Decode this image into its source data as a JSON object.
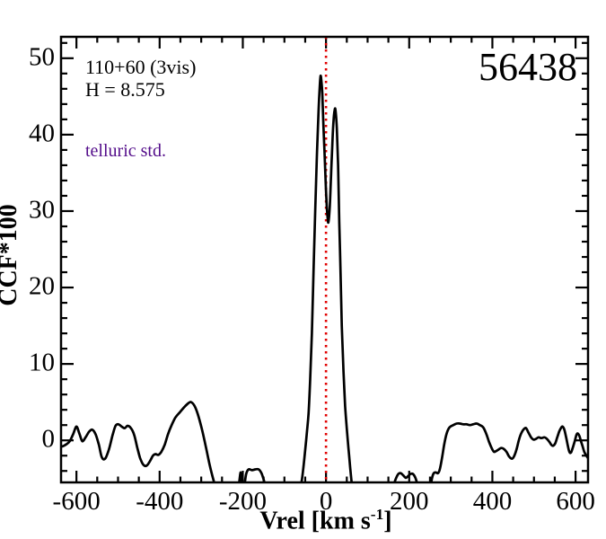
{
  "annotations": {
    "target_name": "110+60 (3vis)",
    "h_magnitude": "H = 8.575",
    "classification": "telluric std.",
    "classification_color": "#530d8a",
    "mjd": "56438"
  },
  "axes": {
    "xlabel_prefix": "Vrel [km s",
    "xlabel_sup": "-1",
    "xlabel_suffix": "]",
    "ylabel": "CCF*100",
    "x_tick_labels": [
      "-600",
      "-400",
      "-200",
      "0",
      "200",
      "400",
      "600"
    ],
    "x_tick_values": [
      -600,
      -400,
      -200,
      0,
      200,
      400,
      600
    ],
    "x_minor_step": 50,
    "y_tick_labels": [
      "0",
      "10",
      "20",
      "30",
      "40",
      "50"
    ],
    "y_tick_values": [
      0,
      10,
      20,
      30,
      40,
      50
    ],
    "y_minor_step": 2,
    "xlim": [
      -637,
      630
    ],
    "ylim": [
      -5.5,
      52.8
    ]
  },
  "chart_data": {
    "type": "line",
    "title": "",
    "xlabel": "Vrel [km s-1]",
    "ylabel": "CCF*100",
    "xlim": [
      -637,
      630
    ],
    "ylim": [
      -5.5,
      52.8
    ],
    "grid": false,
    "legend": "none",
    "reference_line": {
      "x": 0,
      "color": "#e00000",
      "style": "dotted",
      "orientation": "vertical"
    },
    "series": [
      {
        "name": "CCF",
        "color": "#000000",
        "points": [
          [
            -643,
            -0.7
          ],
          [
            -635,
            -0.8
          ],
          [
            -624,
            -0.5
          ],
          [
            -616,
            -0.1
          ],
          [
            -608,
            0.8
          ],
          [
            -600,
            1.8
          ],
          [
            -593,
            0.9
          ],
          [
            -586,
            -0.1
          ],
          [
            -578,
            0.4
          ],
          [
            -570,
            1.1
          ],
          [
            -562,
            1.4
          ],
          [
            -554,
            0.8
          ],
          [
            -546,
            -0.6
          ],
          [
            -539,
            -2.2
          ],
          [
            -531,
            -2.4
          ],
          [
            -522,
            -1.2
          ],
          [
            -513,
            0.7
          ],
          [
            -506,
            1.9
          ],
          [
            -499,
            2.1
          ],
          [
            -491,
            1.8
          ],
          [
            -484,
            1.6
          ],
          [
            -477,
            1.9
          ],
          [
            -469,
            1.6
          ],
          [
            -461,
            0.7
          ],
          [
            -454,
            -0.9
          ],
          [
            -447,
            -2.3
          ],
          [
            -439,
            -3.2
          ],
          [
            -431,
            -3.3
          ],
          [
            -423,
            -2.7
          ],
          [
            -416,
            -2.0
          ],
          [
            -410,
            -1.8
          ],
          [
            -403,
            -1.9
          ],
          [
            -396,
            -1.5
          ],
          [
            -388,
            -0.6
          ],
          [
            -380,
            0.8
          ],
          [
            -371,
            2.0
          ],
          [
            -362,
            3.0
          ],
          [
            -351,
            3.7
          ],
          [
            -340,
            4.4
          ],
          [
            -330,
            4.9
          ],
          [
            -324,
            5.0
          ],
          [
            -316,
            4.5
          ],
          [
            -308,
            3.4
          ],
          [
            -299,
            1.6
          ],
          [
            -289,
            -0.8
          ],
          [
            -279,
            -3.4
          ],
          [
            -269,
            -5.5
          ],
          [
            -261,
            -7.0
          ],
          [
            -248,
            -8.0
          ],
          [
            -232,
            -8.0
          ],
          [
            -213,
            -6.8
          ],
          [
            -209,
            -5.6
          ],
          [
            -205,
            -4.2
          ],
          [
            -202,
            -5.8
          ],
          [
            -197,
            -6.1
          ],
          [
            -192,
            -4.4
          ],
          [
            -186,
            -3.8
          ],
          [
            -178,
            -3.9
          ],
          [
            -170,
            -3.8
          ],
          [
            -162,
            -3.8
          ],
          [
            -155,
            -4.3
          ],
          [
            -149,
            -5.3
          ],
          [
            -144,
            -6.4
          ],
          [
            -136,
            -7.6
          ],
          [
            -115,
            -8.0
          ],
          [
            -85,
            -8.0
          ],
          [
            -68,
            -7.2
          ],
          [
            -60,
            -5.8
          ],
          [
            -55,
            -3.9
          ],
          [
            -50,
            -1.2
          ],
          [
            -46,
            1.0
          ],
          [
            -42,
            3.5
          ],
          [
            -38,
            8.0
          ],
          [
            -34,
            14.0
          ],
          [
            -30,
            22.0
          ],
          [
            -26,
            30.0
          ],
          [
            -22,
            37.0
          ],
          [
            -18,
            43.0
          ],
          [
            -15,
            46.4
          ],
          [
            -13,
            47.7
          ],
          [
            -11,
            47.0
          ],
          [
            -9,
            45.4
          ],
          [
            -6,
            41.0
          ],
          [
            -2,
            35.5
          ],
          [
            1,
            31.5
          ],
          [
            4,
            29.0
          ],
          [
            6,
            28.6
          ],
          [
            9,
            30.5
          ],
          [
            12,
            34.5
          ],
          [
            15,
            38.5
          ],
          [
            18,
            41.8
          ],
          [
            21,
            43.3
          ],
          [
            23,
            43.1
          ],
          [
            26,
            40.8
          ],
          [
            29,
            36.0
          ],
          [
            32,
            28.5
          ],
          [
            35,
            22.0
          ],
          [
            38,
            15.0
          ],
          [
            42,
            9.0
          ],
          [
            46,
            4.5
          ],
          [
            50,
            1.5
          ],
          [
            54,
            -1.0
          ],
          [
            58,
            -3.5
          ],
          [
            62,
            -5.6
          ],
          [
            66,
            -7.2
          ],
          [
            80,
            -8.2
          ],
          [
            120,
            -8.2
          ],
          [
            155,
            -7.5
          ],
          [
            162,
            -6.0
          ],
          [
            168,
            -5.0
          ],
          [
            174,
            -4.4
          ],
          [
            180,
            -4.3
          ],
          [
            186,
            -4.6
          ],
          [
            192,
            -4.9
          ],
          [
            197,
            -4.7
          ],
          [
            203,
            -4.4
          ],
          [
            209,
            -4.4
          ],
          [
            215,
            -4.9
          ],
          [
            220,
            -5.8
          ],
          [
            227,
            -7.2
          ],
          [
            236,
            -7.8
          ],
          [
            246,
            -7.2
          ],
          [
            251,
            -6.2
          ],
          [
            255,
            -4.9
          ],
          [
            259,
            -4.3
          ],
          [
            264,
            -4.2
          ],
          [
            269,
            -4.3
          ],
          [
            273,
            -3.9
          ],
          [
            278,
            -2.6
          ],
          [
            284,
            -0.6
          ],
          [
            290,
            0.9
          ],
          [
            297,
            1.7
          ],
          [
            306,
            2.0
          ],
          [
            314,
            2.2
          ],
          [
            322,
            2.2
          ],
          [
            330,
            2.1
          ],
          [
            338,
            2.1
          ],
          [
            346,
            2.0
          ],
          [
            354,
            2.1
          ],
          [
            362,
            2.2
          ],
          [
            370,
            2.0
          ],
          [
            378,
            1.7
          ],
          [
            385,
            0.9
          ],
          [
            392,
            -0.2
          ],
          [
            399,
            -1.1
          ],
          [
            404,
            -1.5
          ],
          [
            409,
            -1.4
          ],
          [
            415,
            -1.2
          ],
          [
            421,
            -1.0
          ],
          [
            427,
            -1.1
          ],
          [
            434,
            -1.5
          ],
          [
            440,
            -2.1
          ],
          [
            447,
            -2.4
          ],
          [
            452,
            -2.1
          ],
          [
            458,
            -1.2
          ],
          [
            464,
            0.1
          ],
          [
            470,
            1.0
          ],
          [
            476,
            1.5
          ],
          [
            481,
            1.6
          ],
          [
            487,
            1.0
          ],
          [
            493,
            0.4
          ],
          [
            499,
            0.1
          ],
          [
            505,
            0.2
          ],
          [
            511,
            0.4
          ],
          [
            518,
            0.3
          ],
          [
            525,
            0.4
          ],
          [
            531,
            0.2
          ],
          [
            537,
            -0.2
          ],
          [
            542,
            -0.6
          ],
          [
            546,
            -0.7
          ],
          [
            551,
            -0.4
          ],
          [
            556,
            0.4
          ],
          [
            561,
            1.2
          ],
          [
            566,
            1.7
          ],
          [
            569,
            1.8
          ],
          [
            573,
            1.4
          ],
          [
            577,
            0.5
          ],
          [
            581,
            -0.6
          ],
          [
            585,
            -1.5
          ],
          [
            589,
            -1.6
          ],
          [
            593,
            -1.0
          ],
          [
            598,
            -0.1
          ],
          [
            602,
            0.7
          ],
          [
            605,
            0.9
          ],
          [
            609,
            0.6
          ],
          [
            613,
            -0.1
          ],
          [
            617,
            -0.8
          ],
          [
            621,
            -1.5
          ],
          [
            626,
            -2.0
          ],
          [
            631,
            -2.4
          ]
        ]
      }
    ]
  }
}
